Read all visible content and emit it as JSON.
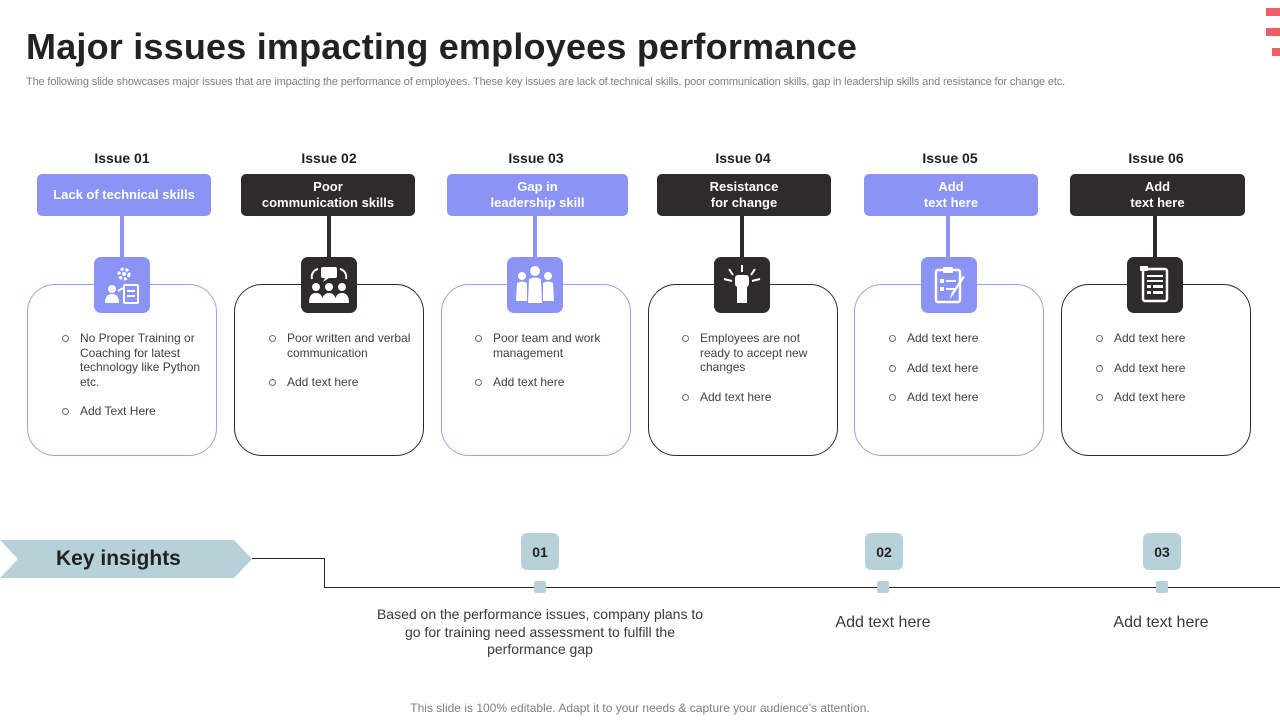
{
  "slide": {
    "title": "Major issues impacting employees performance",
    "subtitle": "The following slide showcases major issues that are impacting the performance of employees. These key issues are lack of technical skills, poor communication skills, gap in leadership skills and resistance for change etc.",
    "footer": "This slide is 100% editable. Adapt it to your needs & capture your audience’s attention.",
    "accent_color": "#8b94f5",
    "dark_color": "#2f2a2b",
    "insight_color": "#b7d1d9",
    "corner_color": "#ec5f67"
  },
  "issues": [
    {
      "label": "Issue 01",
      "heading": "Lack of technical skills",
      "icon": "training-gear-icon",
      "bullets": [
        "No Proper Training or Coaching for latest technology like Python etc.",
        "Add Text Here"
      ]
    },
    {
      "label": "Issue 02",
      "heading": "Poor\ncommunication skills",
      "icon": "communication-people-icon",
      "bullets": [
        "Poor written and verbal communication",
        "Add text here"
      ]
    },
    {
      "label": "Issue 03",
      "heading": "Gap in\nleadership skill",
      "icon": "team-leader-icon",
      "bullets": [
        "Poor team and work management",
        "Add text here"
      ]
    },
    {
      "label": "Issue 04",
      "heading": "Resistance\nfor change",
      "icon": "fist-resist-icon",
      "bullets": [
        "Employees are not ready to accept new changes",
        "Add text here"
      ]
    },
    {
      "label": "Issue 05",
      "heading": "Add\ntext here",
      "icon": "clipboard-pen-icon",
      "bullets": [
        "Add text here",
        "Add text here",
        "Add text here"
      ]
    },
    {
      "label": "Issue 06",
      "heading": "Add\ntext here",
      "icon": "document-list-icon",
      "bullets": [
        "Add text here",
        "Add text here",
        "Add text here"
      ]
    }
  ],
  "insights": {
    "title": "Key insights",
    "items": [
      {
        "number": "01",
        "text": "Based on the performance issues, company plans to go for training  need assessment to fulfill the performance gap"
      },
      {
        "number": "02",
        "text": "Add text here"
      },
      {
        "number": "03",
        "text": "Add text here"
      }
    ]
  }
}
